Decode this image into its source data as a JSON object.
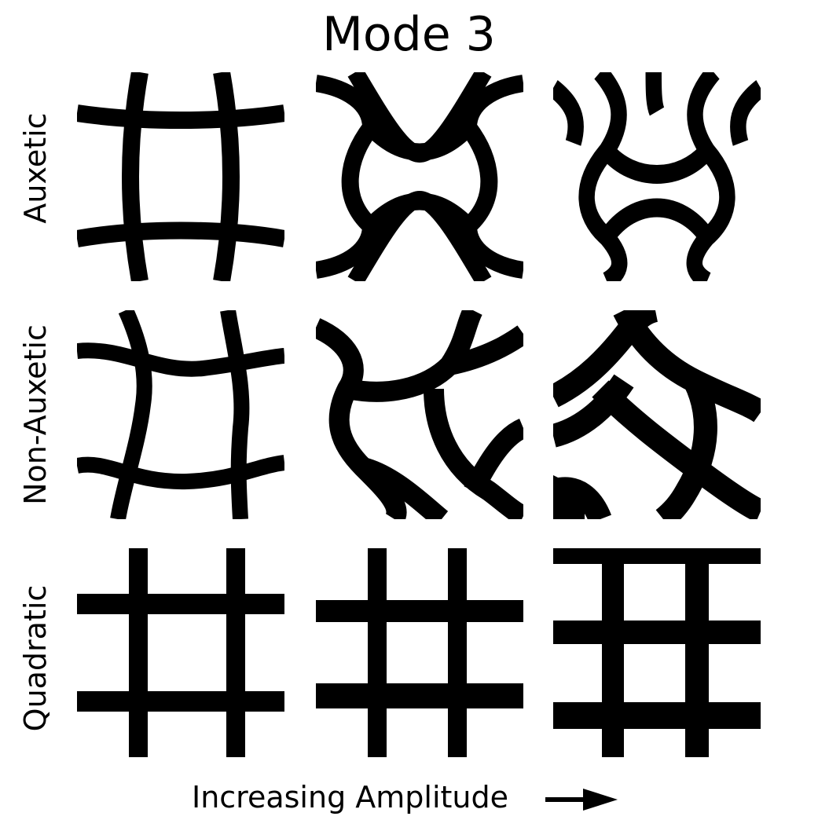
{
  "title": "Mode 3",
  "rows": [
    {
      "label": "Auxetic"
    },
    {
      "label": "Non-Auxetic"
    },
    {
      "label": "Quadratic"
    }
  ],
  "footer": {
    "label": "Increasing Amplitude",
    "arrow_icon": "right-arrow-icon"
  },
  "colors": {
    "ink": "#000000",
    "background": "#ffffff"
  }
}
